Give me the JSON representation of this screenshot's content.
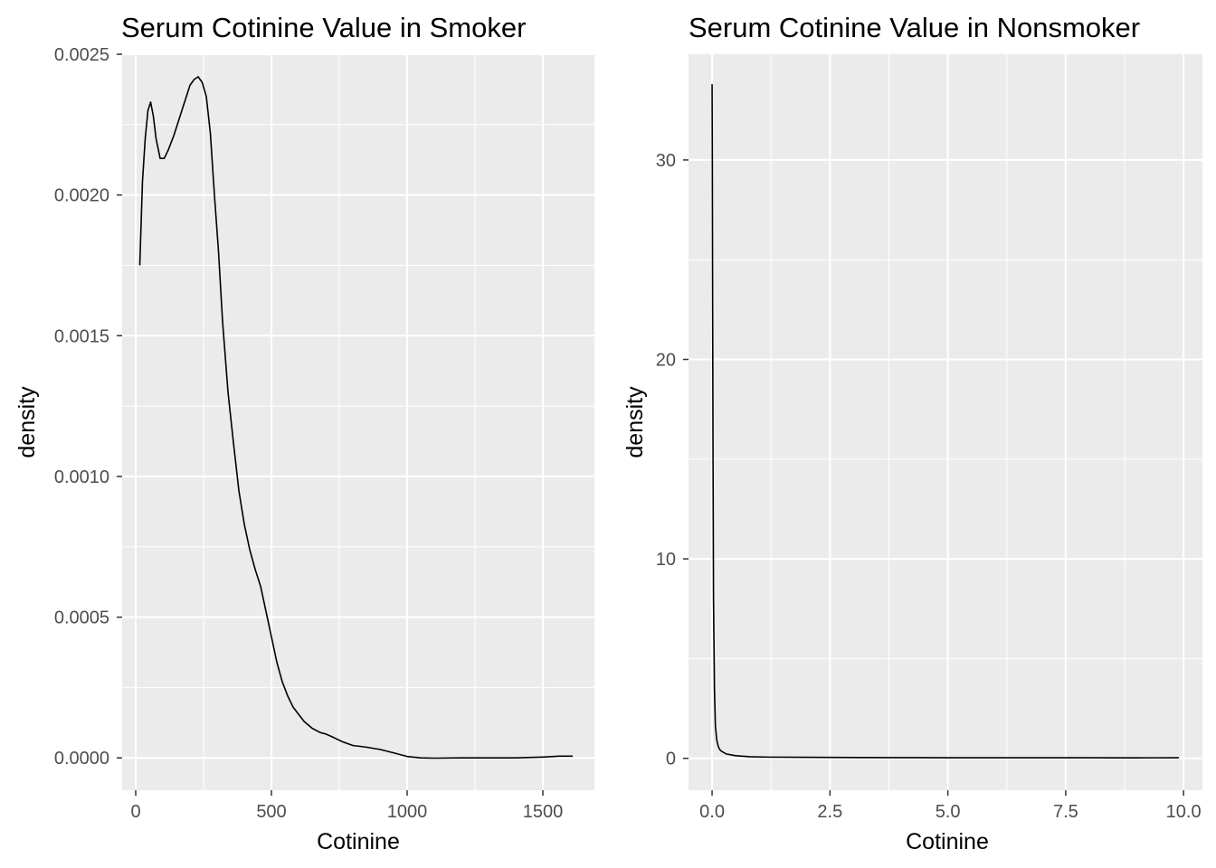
{
  "chart_data": [
    {
      "type": "line",
      "title": "Serum Cotinine Value in Smoker",
      "xlabel": "Cotinine",
      "ylabel": "density",
      "xlim": [
        -50,
        1690
      ],
      "ylim": [
        -0.000115,
        0.0025
      ],
      "x_ticks": [
        0,
        500,
        1000,
        1500
      ],
      "x_tick_labels": [
        "0",
        "500",
        "1000",
        "1500"
      ],
      "y_ticks": [
        0.0,
        0.0005,
        0.001,
        0.0015,
        0.002,
        0.0025
      ],
      "y_tick_labels": [
        "0.0000",
        "0.0005",
        "0.0010",
        "0.0015",
        "0.0020",
        "0.0025"
      ],
      "grid": true,
      "series": [
        {
          "color": "#000000",
          "x": [
            15,
            25,
            35,
            45,
            55,
            65,
            75,
            90,
            105,
            120,
            140,
            160,
            180,
            200,
            215,
            230,
            245,
            260,
            275,
            290,
            305,
            320,
            340,
            360,
            380,
            400,
            420,
            440,
            460,
            480,
            500,
            520,
            540,
            560,
            580,
            600,
            620,
            650,
            680,
            700,
            730,
            760,
            800,
            850,
            900,
            950,
            1000,
            1050,
            1100,
            1200,
            1300,
            1400,
            1500,
            1560,
            1610
          ],
          "y": [
            0.00175,
            0.00205,
            0.0022,
            0.0023,
            0.00233,
            0.00228,
            0.0022,
            0.00213,
            0.00213,
            0.00216,
            0.00221,
            0.00227,
            0.00233,
            0.00239,
            0.00241,
            0.00242,
            0.0024,
            0.00235,
            0.00222,
            0.002,
            0.0018,
            0.00155,
            0.0013,
            0.00112,
            0.00095,
            0.00083,
            0.00074,
            0.00067,
            0.00061,
            0.00052,
            0.00043,
            0.00034,
            0.00027,
            0.00022,
            0.00018,
            0.000155,
            0.00013,
            0.000105,
            9e-05,
            8.5e-05,
            7.2e-05,
            5.8e-05,
            4.4e-05,
            3.8e-05,
            3e-05,
            1.8e-05,
            5e-06,
            0.0,
            -1e-06,
            0.0,
            0.0,
            0.0,
            3e-06,
            6e-06,
            6e-06
          ]
        }
      ]
    },
    {
      "type": "line",
      "title": "Serum Cotinine Value in Nonsmoker",
      "xlabel": "Cotinine",
      "ylabel": "density",
      "xlim": [
        -0.5,
        10.4
      ],
      "ylim": [
        -1.6,
        35.3
      ],
      "x_ticks": [
        0,
        2.5,
        5,
        7.5,
        10
      ],
      "x_tick_labels": [
        "0.0",
        "2.5",
        "5.0",
        "7.5",
        "10.0"
      ],
      "y_ticks": [
        0,
        10,
        20,
        30
      ],
      "y_tick_labels": [
        "0",
        "10",
        "20",
        "30"
      ],
      "grid": true,
      "series": [
        {
          "color": "#000000",
          "x": [
            0.0,
            0.005,
            0.01,
            0.02,
            0.03,
            0.05,
            0.07,
            0.1,
            0.13,
            0.16,
            0.2,
            0.3,
            0.5,
            0.8,
            1.2,
            2.0,
            3.0,
            4.0,
            5.0,
            6.0,
            7.0,
            8.0,
            9.0,
            9.9
          ],
          "y": [
            33.8,
            30.0,
            24.0,
            15.0,
            8.0,
            3.5,
            1.6,
            0.9,
            0.6,
            0.45,
            0.35,
            0.22,
            0.13,
            0.08,
            0.06,
            0.05,
            0.04,
            0.035,
            0.03,
            0.03,
            0.028,
            0.028,
            0.025,
            0.03
          ]
        }
      ]
    }
  ]
}
